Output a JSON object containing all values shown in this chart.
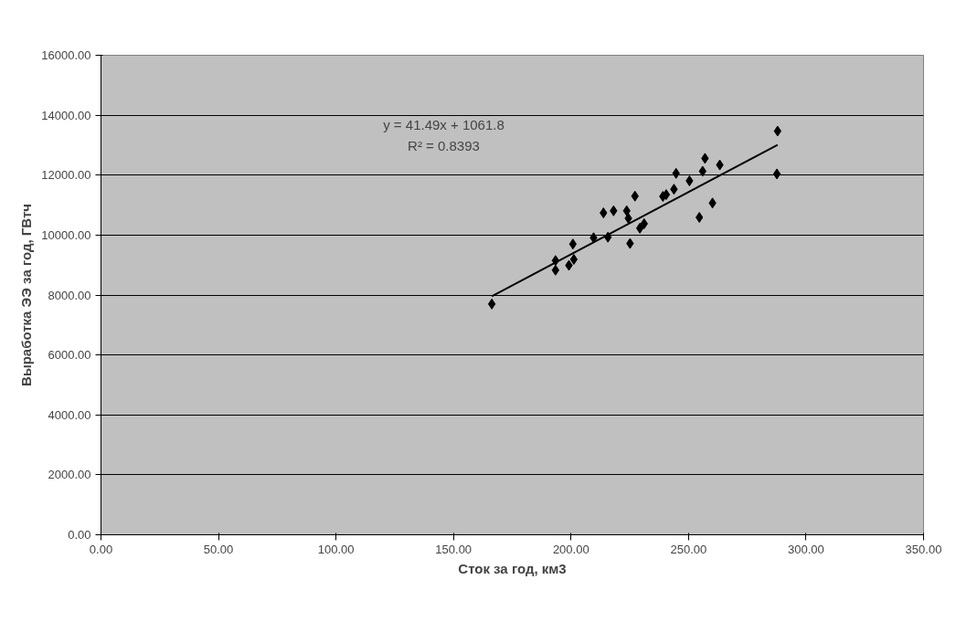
{
  "chart_data": {
    "type": "scatter",
    "xlabel": "Сток за год, км3",
    "ylabel": "Выработка ЭЭ за год, ГВтч",
    "xlim": [
      0,
      350
    ],
    "xticks": [
      {
        "value": 0,
        "label": "0.00"
      },
      {
        "value": 50,
        "label": "50.00"
      },
      {
        "value": 100,
        "label": "100.00"
      },
      {
        "value": 150,
        "label": "150.00"
      },
      {
        "value": 200,
        "label": "200.00"
      },
      {
        "value": 250,
        "label": "250.00"
      },
      {
        "value": 300,
        "label": "300.00"
      },
      {
        "value": 350,
        "label": "350.00"
      }
    ],
    "ylim": [
      0,
      16000
    ],
    "yticks": [
      {
        "value": 0,
        "label": "0.00"
      },
      {
        "value": 2000,
        "label": "2000.00"
      },
      {
        "value": 4000,
        "label": "4000.00"
      },
      {
        "value": 6000,
        "label": "6000.00"
      },
      {
        "value": 8000,
        "label": "8000.00"
      },
      {
        "value": 10000,
        "label": "10000.00"
      },
      {
        "value": 12000,
        "label": "12000.00"
      },
      {
        "value": 14000,
        "label": "14000.00"
      },
      {
        "value": 16000,
        "label": "16000.00"
      }
    ],
    "grid": "y",
    "series": [
      {
        "marker": "diamond",
        "color": "#000000",
        "x": [
          166.3,
          193.4,
          193.4,
          199.1,
          201.2,
          200.8,
          209.6,
          213.8,
          215.7,
          218.1,
          223.7,
          224.4,
          225.1,
          227.2,
          229.3,
          231.1,
          239.1,
          240.5,
          243.8,
          244.7,
          250.4,
          254.6,
          256.0,
          257.0,
          260.2,
          263.3,
          287.9,
          287.6
        ],
        "values": [
          7700,
          9150,
          8830,
          8990,
          9190,
          9700,
          9910,
          10740,
          9930,
          10810,
          10810,
          10560,
          9720,
          11300,
          10230,
          10380,
          11290,
          11350,
          11530,
          12060,
          11810,
          10590,
          12130,
          12560,
          11070,
          12340,
          13470,
          12040
        ]
      },
      {
        "type": "line",
        "color": "#000000",
        "x": [
          166.3,
          287.9
        ],
        "values": [
          7960,
          13010
        ]
      }
    ],
    "annotations": [
      "y = 41.49x + 1061.8",
      "R² = 0.8393"
    ]
  }
}
